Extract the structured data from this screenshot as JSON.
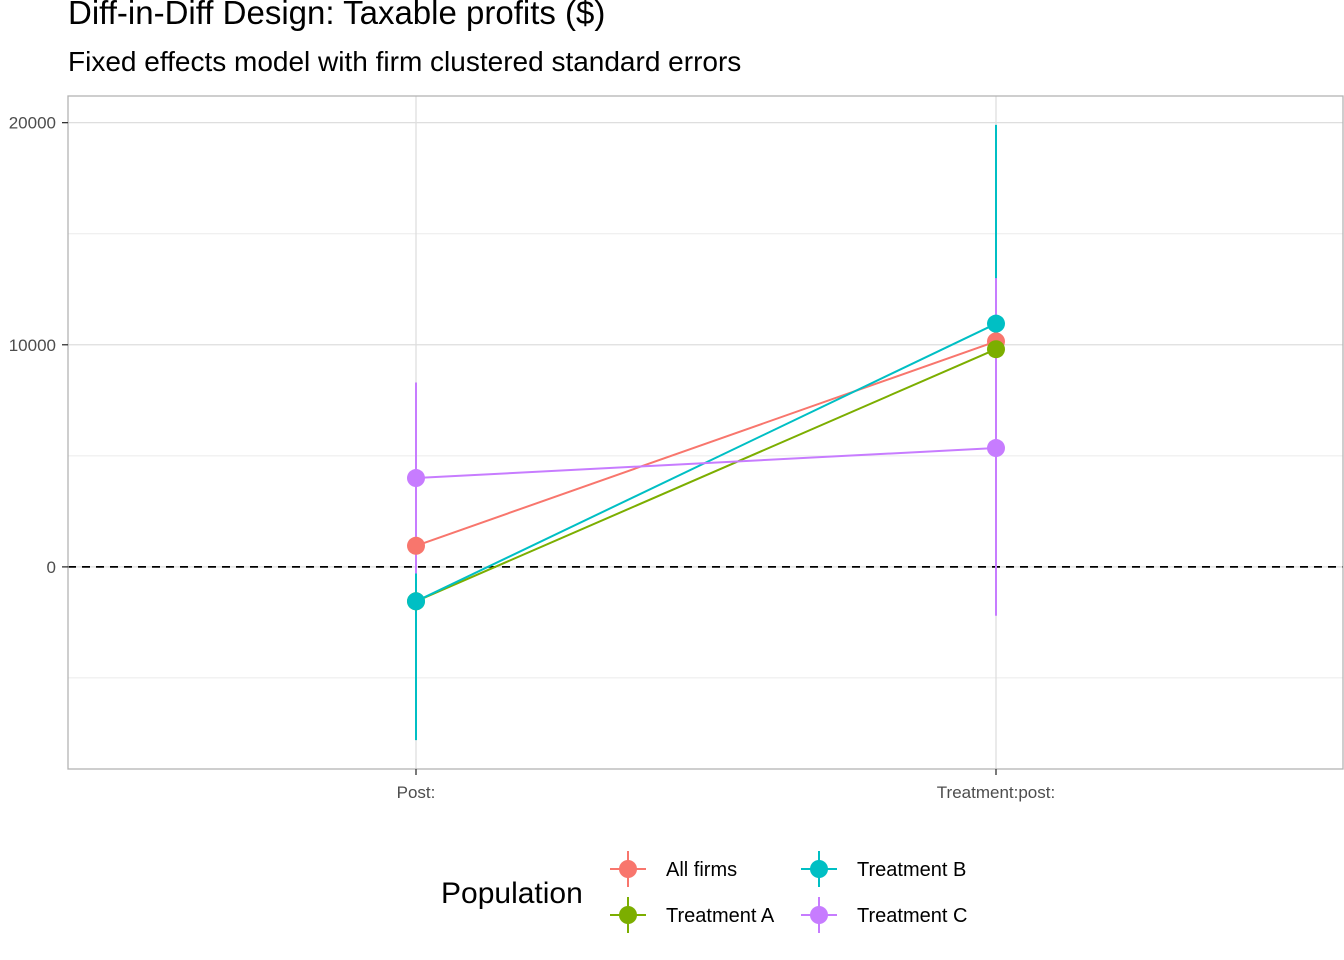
{
  "chart_data": {
    "type": "scatter",
    "title": "Diff-in-Diff Design: Taxable profits  ($)",
    "subtitle": "Fixed effects model with firm clustered standard errors",
    "xlabel": "",
    "ylabel": "",
    "categories": [
      "Post:",
      "Treatment:post:"
    ],
    "ylim": [
      -9100,
      21200
    ],
    "yticks": [
      0,
      10000,
      20000
    ],
    "y_minor_ticks": [
      -5000,
      5000,
      15000
    ],
    "reference_line": 0,
    "grid": true,
    "legend": {
      "title": "Population",
      "position": "bottom"
    },
    "series": [
      {
        "name": "All firms",
        "color": "#F8766D",
        "values": [
          950,
          10150
        ],
        "lower": [
          950,
          10150
        ],
        "upper": [
          950,
          10150
        ]
      },
      {
        "name": "Treatment A",
        "color": "#7CAE00",
        "values": [
          -1550,
          9800
        ],
        "lower": [
          -1550,
          9800
        ],
        "upper": [
          -1550,
          9800
        ]
      },
      {
        "name": "Treatment B",
        "color": "#00BFC4",
        "values": [
          -1550,
          10950
        ],
        "lower": [
          -7800,
          1900
        ],
        "upper": [
          4600,
          19900
        ]
      },
      {
        "name": "Treatment C",
        "color": "#C77CFF",
        "values": [
          4000,
          5350
        ],
        "lower": [
          -300,
          -2200
        ],
        "upper": [
          8300,
          13000
        ]
      }
    ]
  }
}
